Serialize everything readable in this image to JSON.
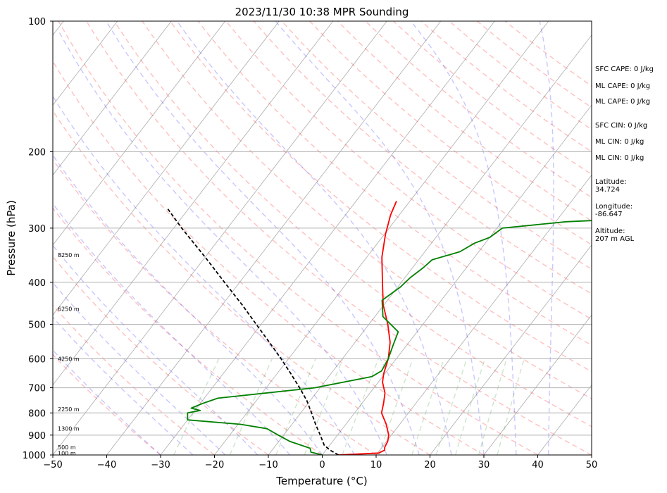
{
  "chart_data": {
    "type": "line",
    "title": "2023/11/30 10:38 MPR Sounding",
    "xlabel": "Temperature (°C)",
    "ylabel": "Pressure (hPa)",
    "xlim": [
      -50,
      50
    ],
    "ylim": [
      1000,
      100
    ],
    "y_scale": "log",
    "x_ticks": [
      -50,
      -40,
      -30,
      -20,
      -10,
      0,
      10,
      20,
      30,
      40,
      50
    ],
    "y_ticks": [
      1000,
      900,
      800,
      700,
      600,
      500,
      400,
      300,
      200,
      100
    ],
    "grid": true,
    "series": [
      {
        "color": "#ff0000",
        "points": [
          [
            1000,
            3.0
          ],
          [
            990,
            10.2
          ],
          [
            975,
            10.9
          ],
          [
            960,
            10.5
          ],
          [
            930,
            10.2
          ],
          [
            900,
            9.5
          ],
          [
            850,
            7.5
          ],
          [
            800,
            5.0
          ],
          [
            760,
            4.0
          ],
          [
            720,
            2.8
          ],
          [
            680,
            0.8
          ],
          [
            650,
            -0.2
          ],
          [
            600,
            -1.5
          ],
          [
            550,
            -3.5
          ],
          [
            500,
            -6.5
          ],
          [
            450,
            -10.2
          ],
          [
            400,
            -13.5
          ],
          [
            350,
            -17.2
          ],
          [
            310,
            -19.8
          ],
          [
            280,
            -21.6
          ],
          [
            260,
            -22.5
          ]
        ]
      },
      {
        "color": "#008000",
        "points": [
          [
            1000,
            0.0
          ],
          [
            985,
            -2.5
          ],
          [
            965,
            -3.2
          ],
          [
            930,
            -8.0
          ],
          [
            900,
            -11.0
          ],
          [
            870,
            -14.0
          ],
          [
            850,
            -19.5
          ],
          [
            830,
            -30.0
          ],
          [
            800,
            -31.0
          ],
          [
            790,
            -29.0
          ],
          [
            780,
            -31.0
          ],
          [
            760,
            -29.5
          ],
          [
            740,
            -27.5
          ],
          [
            700,
            -11.0
          ],
          [
            660,
            -2.0
          ],
          [
            640,
            -1.0
          ],
          [
            600,
            -1.5
          ],
          [
            560,
            -2.5
          ],
          [
            520,
            -3.5
          ],
          [
            480,
            -8.5
          ],
          [
            440,
            -11.0
          ],
          [
            410,
            -9.5
          ],
          [
            390,
            -9.0
          ],
          [
            370,
            -8.0
          ],
          [
            355,
            -7.5
          ],
          [
            340,
            -3.5
          ],
          [
            325,
            -2.0
          ],
          [
            315,
            0.0
          ],
          [
            300,
            1.0
          ],
          [
            290,
            12.0
          ],
          [
            285,
            25.0
          ]
        ]
      },
      {
        "color": "#000000",
        "dashed": true,
        "points": [
          [
            1000,
            3.0
          ],
          [
            975,
            0.8
          ],
          [
            950,
            -1.0
          ],
          [
            900,
            -3.2
          ],
          [
            850,
            -5.6
          ],
          [
            800,
            -8.0
          ],
          [
            750,
            -10.6
          ],
          [
            700,
            -13.8
          ],
          [
            650,
            -17.4
          ],
          [
            600,
            -21.4
          ],
          [
            550,
            -25.9
          ],
          [
            500,
            -30.9
          ],
          [
            450,
            -36.4
          ],
          [
            400,
            -42.8
          ],
          [
            350,
            -50.0
          ],
          [
            300,
            -58.5
          ],
          [
            270,
            -64.0
          ]
        ]
      }
    ],
    "background_lines": {
      "dry_adiabats_color": "#ff0000",
      "moist_adiabats_color": "#0000ff",
      "mixing_ratio_color": "#008000",
      "isotherms_color": "#808080"
    },
    "height_labels": [
      {
        "p": 990,
        "text": "100 m"
      },
      {
        "p": 960,
        "text": "500 m"
      },
      {
        "p": 870,
        "text": "1300 m"
      },
      {
        "p": 785,
        "text": "2250 m"
      },
      {
        "p": 600,
        "text": "4250 m"
      },
      {
        "p": 460,
        "text": "6250 m"
      },
      {
        "p": 346,
        "text": "8250 m"
      }
    ]
  },
  "side_panel": {
    "sfc_cape": "SFC CAPE: 0 J/kg",
    "ml_cape_1": "ML CAPE: 0 J/kg",
    "ml_cape_2": "ML CAPE: 0 J/kg",
    "sfc_cin": "SFC CIN: 0 J/kg",
    "ml_cin_1": "ML CIN: 0 J/kg",
    "ml_cin_2": "ML CIN: 0 J/kg",
    "latitude": "Latitude:\n34.724",
    "longitude": "Longitude:\n-86.647",
    "altitude": "Altitude:\n207 m AGL"
  }
}
